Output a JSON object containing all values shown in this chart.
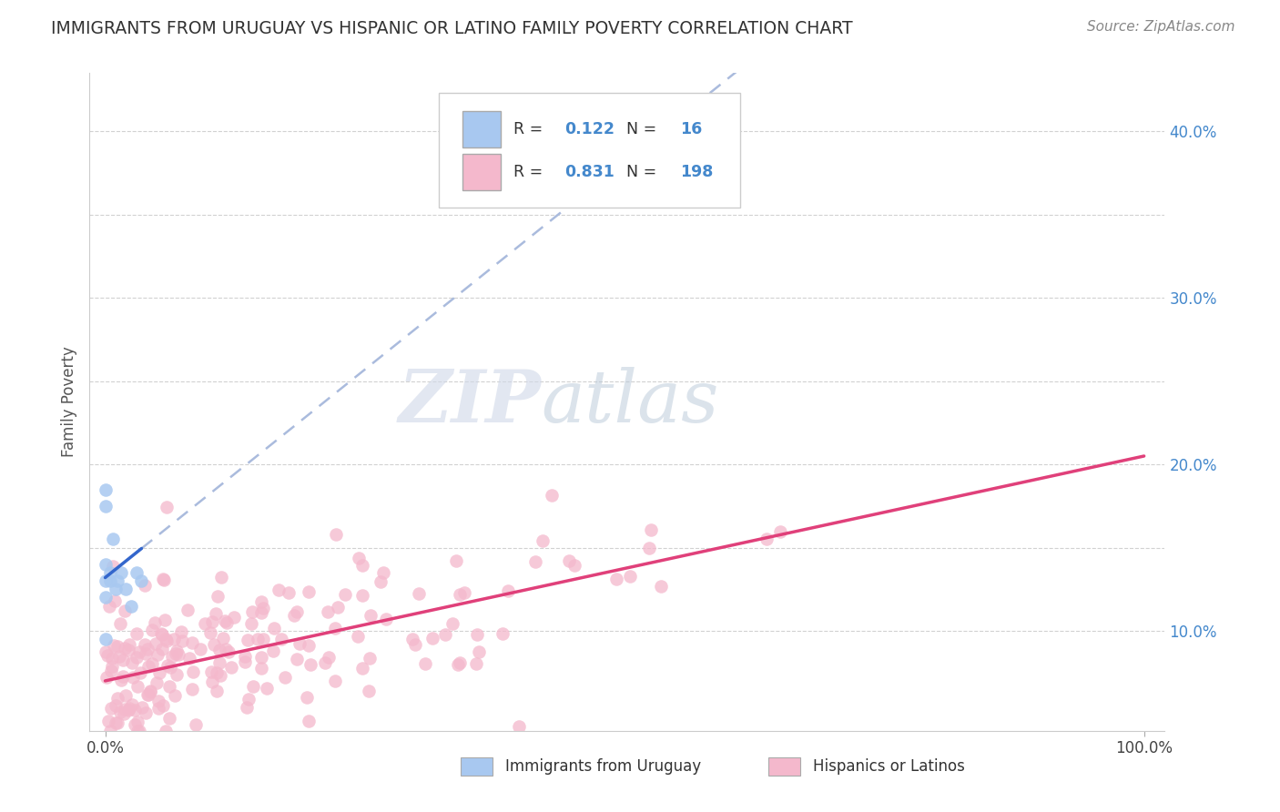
{
  "title": "IMMIGRANTS FROM URUGUAY VS HISPANIC OR LATINO FAMILY POVERTY CORRELATION CHART",
  "source": "Source: ZipAtlas.com",
  "ylabel": "Family Poverty",
  "legend_blue_r": "0.122",
  "legend_blue_n": "16",
  "legend_pink_r": "0.831",
  "legend_pink_n": "198",
  "blue_color": "#a8c8f0",
  "pink_color": "#f4b8cc",
  "blue_line_color": "#3366cc",
  "pink_line_color": "#e0407a",
  "dash_line_color": "#aabbdd",
  "ytick_color": "#4488cc",
  "title_color": "#333333",
  "source_color": "#888888",
  "watermark_zip": "ZIP",
  "watermark_atlas": "atlas",
  "grid_color": "#cccccc"
}
